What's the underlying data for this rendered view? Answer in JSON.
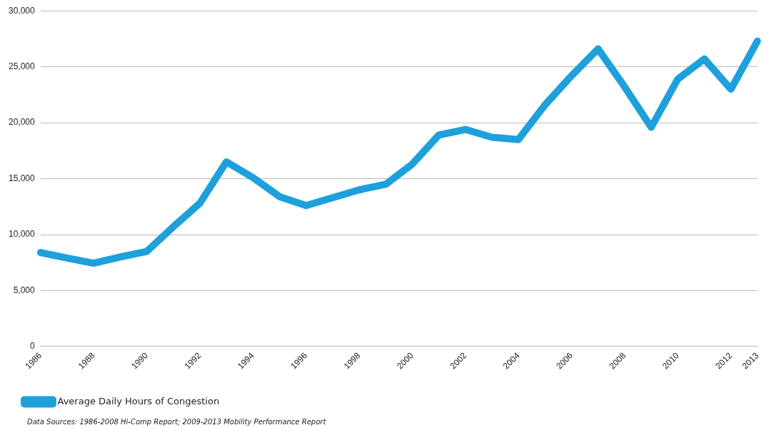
{
  "chart_data": {
    "type": "line",
    "categories": [
      "1986",
      null,
      "1988",
      null,
      "1990",
      null,
      "1992",
      null,
      "1994",
      null,
      "1996",
      null,
      "1998",
      null,
      "2000",
      null,
      "2002",
      null,
      "2004",
      null,
      "2006",
      null,
      "2008",
      null,
      "2010",
      null,
      "2012",
      "2013"
    ],
    "series": [
      {
        "name": "Average Daily Hours of Congestion",
        "color": "#1ea0dc",
        "values": [
          8400,
          7900,
          7450,
          8000,
          8500,
          10700,
          12800,
          16500,
          15100,
          13400,
          12600,
          13300,
          14000,
          14500,
          16300,
          18900,
          19400,
          18700,
          18500,
          21600,
          24200,
          26600,
          23200,
          19600,
          23900,
          25700,
          23000,
          27300
        ]
      }
    ],
    "ylim": [
      0,
      30000
    ],
    "yticks": [
      0,
      {
        "value": 5000,
        "label": "5,000"
      },
      {
        "value": 10000,
        "label": "10,000"
      },
      {
        "value": 15000,
        "label": "15,000"
      },
      {
        "value": 20000,
        "label": "20,000"
      },
      {
        "value": 25000,
        "label": "25,000"
      },
      {
        "value": 30000,
        "label": "30,000"
      }
    ],
    "grid": "y",
    "legend": "bottom left",
    "marker": "none",
    "line_style": "solid",
    "annotations": [
      "Data Sources: 1986-2008 Hi-Comp Report; 2009-2013 Mobility Performance Report"
    ]
  }
}
